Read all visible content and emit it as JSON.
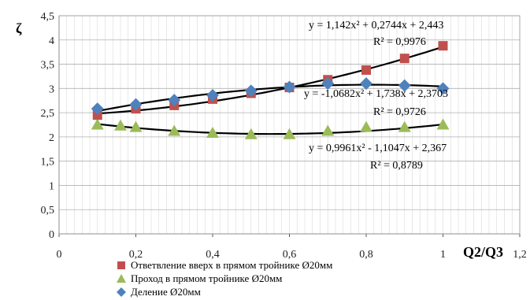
{
  "chart_data": {
    "type": "scatter",
    "title": "",
    "xlabel": "Q2/Q3",
    "ylabel": "ζ",
    "xlim": [
      0,
      1.2
    ],
    "ylim": [
      0,
      4.5
    ],
    "x_ticks": [
      "0",
      "0,2",
      "0,4",
      "0,6",
      "0,8",
      "1",
      "1,2"
    ],
    "y_ticks": [
      "0",
      "0,5",
      "1",
      "1,5",
      "2",
      "2,5",
      "3",
      "3,5",
      "4",
      "4,5"
    ],
    "grid": true,
    "legend_position": "bottom",
    "series": [
      {
        "name": "Ответвление вверх в прямом тройнике  Ø20мм",
        "marker": "square",
        "color": "#C0504D",
        "x": [
          0.1,
          0.2,
          0.3,
          0.4,
          0.5,
          0.6,
          0.7,
          0.8,
          0.9,
          1.0
        ],
        "y": [
          2.45,
          2.58,
          2.65,
          2.78,
          2.9,
          3.02,
          3.18,
          3.38,
          3.62,
          3.88
        ],
        "trendline": {
          "a": 1.142,
          "b": 0.2744,
          "c": 2.443,
          "equation": "y = 1,142x² + 0,2744x + 2,443",
          "r2": "R² = 0,9976"
        }
      },
      {
        "name": "Проход в прямом тройнике  Ø20мм",
        "marker": "triangle",
        "color": "#9BBB59",
        "x": [
          0.1,
          0.16,
          0.2,
          0.3,
          0.4,
          0.5,
          0.6,
          0.7,
          0.8,
          0.9,
          1.0
        ],
        "y": [
          2.25,
          2.23,
          2.2,
          2.12,
          2.08,
          2.05,
          2.05,
          2.12,
          2.2,
          2.2,
          2.25
        ],
        "trendline": {
          "a": 0.9961,
          "b": -1.1047,
          "c": 2.367,
          "equation": "y = 0,9961x² - 1,1047x + 2,367",
          "r2": "R² = 0,8789"
        }
      },
      {
        "name": "Деление Ø20мм",
        "marker": "diamond",
        "color": "#4F81BD",
        "x": [
          0.1,
          0.2,
          0.3,
          0.4,
          0.5,
          0.6,
          0.7,
          0.8,
          0.9,
          1.0
        ],
        "y": [
          2.58,
          2.67,
          2.76,
          2.86,
          2.95,
          3.03,
          3.1,
          3.1,
          3.06,
          3.0
        ],
        "trendline": {
          "a": -1.0682,
          "b": 1.738,
          "c": 2.3703,
          "equation": "y = -1,0682x² + 1,738x + 2,3703",
          "r2": "R² = 0,9726"
        }
      }
    ]
  }
}
